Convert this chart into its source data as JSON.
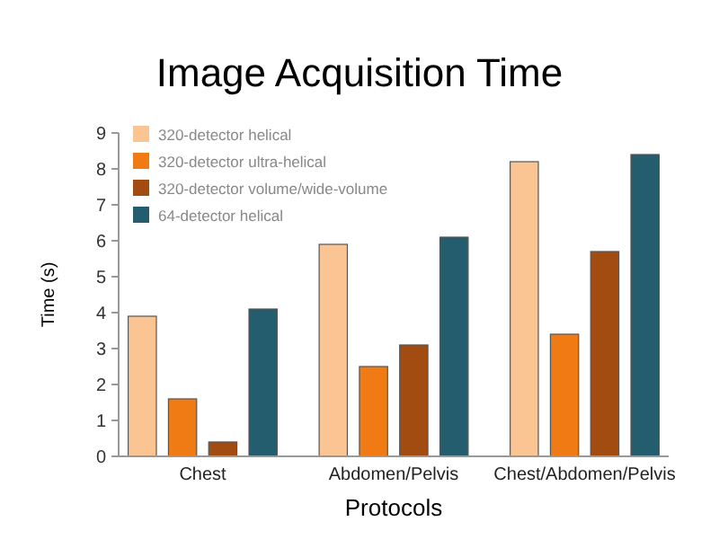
{
  "chart_data": {
    "type": "bar",
    "title": "Image Acquisition Time",
    "xlabel": "Protocols",
    "ylabel": "Time (s)",
    "categories": [
      "Chest",
      "Abdomen/Pelvis",
      "Chest/Abdomen/Pelvis"
    ],
    "series": [
      {
        "name": "320-detector helical",
        "color": "#fbc593",
        "values": [
          3.9,
          5.9,
          8.2
        ]
      },
      {
        "name": "320-detector ultra-helical",
        "color": "#f07a14",
        "values": [
          1.6,
          2.5,
          3.4
        ]
      },
      {
        "name": "320-detector volume/wide-volume",
        "color": "#a24c12",
        "values": [
          0.4,
          3.1,
          5.7
        ]
      },
      {
        "name": "64-detector helical",
        "color": "#245e6e",
        "values": [
          4.1,
          6.1,
          8.4
        ]
      }
    ],
    "ylim": [
      0,
      9
    ],
    "yticks": [
      0,
      1,
      2,
      3,
      4,
      5,
      6,
      7,
      8,
      9
    ],
    "grid": false,
    "legend": "top left"
  }
}
